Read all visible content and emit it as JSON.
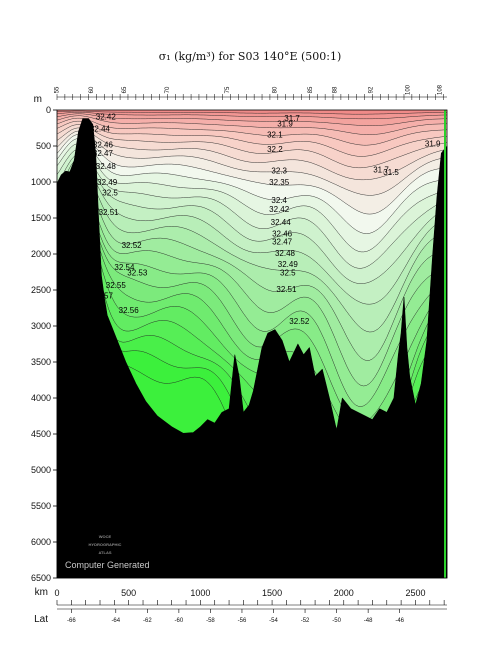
{
  "title": "σ₁ (kg/m³) for S03 140°E (500:1)",
  "watermark": "Computer Generated",
  "logo_lines": [
    "WOCE",
    "HYDROGRAPHIC",
    "ATLAS"
  ],
  "colors": {
    "seafloor": "#000000",
    "fill_low": "#f08a88",
    "fill_high": "#3cf03c",
    "contour_line": "#222222"
  },
  "chart_data": {
    "type": "heatmap",
    "title": "σ₁ (kg/m³) for S03 140°E (500:1)",
    "ylabel": "m",
    "xlabel": "km",
    "x2label": "Lat",
    "xlim": [
      0,
      2720
    ],
    "ylim": [
      6500,
      0
    ],
    "y_ticks": [
      0,
      500,
      1000,
      1500,
      2000,
      2500,
      3000,
      3500,
      4000,
      4500,
      5000,
      5500,
      6000,
      6500
    ],
    "x_ticks": [
      0,
      500,
      1000,
      1500,
      2000,
      2500
    ],
    "lat_ticks": [
      {
        "label": "-66",
        "km": 100
      },
      {
        "label": "-64",
        "km": 410
      },
      {
        "label": "-62",
        "km": 630
      },
      {
        "label": "-60",
        "km": 850
      },
      {
        "label": "-58",
        "km": 1070
      },
      {
        "label": "-56",
        "km": 1290
      },
      {
        "label": "-54",
        "km": 1510
      },
      {
        "label": "-52",
        "km": 1730
      },
      {
        "label": "-50",
        "km": 1950
      },
      {
        "label": "-48",
        "km": 2170
      },
      {
        "label": "-46",
        "km": 2390
      }
    ],
    "station_labels": [
      {
        "label": "55",
        "km": 10
      },
      {
        "label": "60",
        "km": 250
      },
      {
        "label": "65",
        "km": 480
      },
      {
        "label": "70",
        "km": 780
      },
      {
        "label": "75",
        "km": 1200
      },
      {
        "label": "80",
        "km": 1530
      },
      {
        "label": "85",
        "km": 1780
      },
      {
        "label": "88",
        "km": 1950
      },
      {
        "label": "92",
        "km": 2200
      },
      {
        "label": "100",
        "km": 2460
      },
      {
        "label": "108",
        "km": 2680
      }
    ],
    "contour_levels": [
      31.5,
      31.7,
      31.9,
      32.1,
      32.2,
      32.3,
      32.35,
      32.4,
      32.42,
      32.44,
      32.46,
      32.47,
      32.48,
      32.49,
      32.5,
      32.51,
      32.52
    ],
    "contour_labels": [
      {
        "text": "31.7",
        "km": 1640,
        "depth": 150
      },
      {
        "text": "31.9",
        "km": 1590,
        "depth": 230
      },
      {
        "text": "32.1",
        "km": 1520,
        "depth": 380
      },
      {
        "text": "32.2",
        "km": 1520,
        "depth": 580
      },
      {
        "text": "32.3",
        "km": 1550,
        "depth": 880
      },
      {
        "text": "32.35",
        "km": 1550,
        "depth": 1040
      },
      {
        "text": "32.4",
        "km": 1550,
        "depth": 1290
      },
      {
        "text": "32.42",
        "km": 1550,
        "depth": 1420
      },
      {
        "text": "32.44",
        "km": 1560,
        "depth": 1600
      },
      {
        "text": "32.46",
        "km": 1570,
        "depth": 1760
      },
      {
        "text": "32.47",
        "km": 1570,
        "depth": 1870
      },
      {
        "text": "32.48",
        "km": 1590,
        "depth": 2030
      },
      {
        "text": "32.49",
        "km": 1610,
        "depth": 2180
      },
      {
        "text": "32.5",
        "km": 1610,
        "depth": 2300
      },
      {
        "text": "32.51",
        "km": 1600,
        "depth": 2530
      },
      {
        "text": "32.52",
        "km": 1690,
        "depth": 2970
      },
      {
        "text": "31.7",
        "km": 2260,
        "depth": 870
      },
      {
        "text": "31.5",
        "km": 2330,
        "depth": 900
      },
      {
        "text": "31.9",
        "km": 2620,
        "depth": 510
      },
      {
        "text": "32.42",
        "km": 340,
        "depth": 130
      },
      {
        "text": "32.44",
        "km": 300,
        "depth": 300
      },
      {
        "text": "32.46",
        "km": 320,
        "depth": 520
      },
      {
        "text": "32.47",
        "km": 320,
        "depth": 640
      },
      {
        "text": "32.48",
        "km": 340,
        "depth": 820
      },
      {
        "text": "32.49",
        "km": 350,
        "depth": 1040
      },
      {
        "text": "32.5",
        "km": 370,
        "depth": 1190
      },
      {
        "text": "32.51",
        "km": 360,
        "depth": 1460
      },
      {
        "text": "32.52",
        "km": 520,
        "depth": 1920
      },
      {
        "text": "32.56",
        "km": 240,
        "depth": 2140
      },
      {
        "text": "32.54",
        "km": 470,
        "depth": 2220
      },
      {
        "text": "32.53",
        "km": 560,
        "depth": 2300
      },
      {
        "text": "32.55",
        "km": 410,
        "depth": 2470
      },
      {
        "text": "32.57",
        "km": 320,
        "depth": 2620
      },
      {
        "text": "32.56",
        "km": 500,
        "depth": 2820
      }
    ],
    "bottom_profile": [
      [
        0,
        1020
      ],
      [
        30,
        900
      ],
      [
        60,
        850
      ],
      [
        90,
        860
      ],
      [
        120,
        700
      ],
      [
        150,
        300
      ],
      [
        180,
        120
      ],
      [
        220,
        120
      ],
      [
        250,
        200
      ],
      [
        270,
        600
      ],
      [
        290,
        1500
      ],
      [
        310,
        2300
      ],
      [
        330,
        2600
      ],
      [
        350,
        2850
      ],
      [
        380,
        3000
      ],
      [
        420,
        3200
      ],
      [
        480,
        3500
      ],
      [
        550,
        3800
      ],
      [
        620,
        4050
      ],
      [
        700,
        4250
      ],
      [
        800,
        4400
      ],
      [
        880,
        4490
      ],
      [
        950,
        4480
      ],
      [
        1000,
        4400
      ],
      [
        1050,
        4300
      ],
      [
        1100,
        4350
      ],
      [
        1150,
        4200
      ],
      [
        1200,
        4150
      ],
      [
        1240,
        3400
      ],
      [
        1270,
        3700
      ],
      [
        1300,
        4200
      ],
      [
        1340,
        4100
      ],
      [
        1370,
        3900
      ],
      [
        1400,
        3600
      ],
      [
        1430,
        3300
      ],
      [
        1470,
        3100
      ],
      [
        1520,
        3050
      ],
      [
        1570,
        3200
      ],
      [
        1620,
        3500
      ],
      [
        1680,
        3250
      ],
      [
        1720,
        3400
      ],
      [
        1760,
        3300
      ],
      [
        1800,
        3700
      ],
      [
        1850,
        3600
      ],
      [
        1900,
        4000
      ],
      [
        1950,
        4450
      ],
      [
        1990,
        4000
      ],
      [
        2050,
        4150
      ],
      [
        2100,
        4200
      ],
      [
        2150,
        4250
      ],
      [
        2200,
        4300
      ],
      [
        2250,
        4150
      ],
      [
        2300,
        4200
      ],
      [
        2350,
        4000
      ],
      [
        2380,
        3400
      ],
      [
        2400,
        3100
      ],
      [
        2420,
        2600
      ],
      [
        2440,
        3300
      ],
      [
        2460,
        3700
      ],
      [
        2500,
        4100
      ],
      [
        2540,
        3800
      ],
      [
        2580,
        3200
      ],
      [
        2620,
        2000
      ],
      [
        2650,
        1200
      ],
      [
        2680,
        600
      ],
      [
        2720,
        500
      ]
    ]
  }
}
